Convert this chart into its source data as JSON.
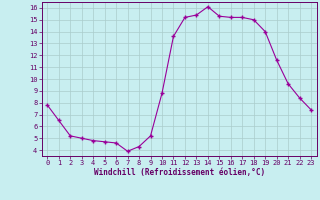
{
  "x": [
    0,
    1,
    2,
    3,
    4,
    5,
    6,
    7,
    8,
    9,
    10,
    11,
    12,
    13,
    14,
    15,
    16,
    17,
    18,
    19,
    20,
    21,
    22,
    23
  ],
  "y": [
    7.8,
    6.5,
    5.2,
    5.0,
    4.8,
    4.7,
    4.6,
    3.9,
    4.3,
    5.2,
    8.8,
    13.6,
    15.2,
    15.4,
    16.1,
    15.3,
    15.2,
    15.2,
    15.0,
    14.0,
    11.6,
    9.6,
    8.4,
    7.4
  ],
  "line_color": "#990099",
  "marker": "+",
  "marker_size": 3.5,
  "bg_color": "#c8eef0",
  "grid_color": "#aacccc",
  "xlabel": "Windchill (Refroidissement éolien,°C)",
  "xlabel_color": "#660066",
  "tick_color": "#660066",
  "ylim": [
    3.5,
    16.5
  ],
  "xlim": [
    -0.5,
    23.5
  ],
  "yticks": [
    4,
    5,
    6,
    7,
    8,
    9,
    10,
    11,
    12,
    13,
    14,
    15,
    16
  ],
  "xticks": [
    0,
    1,
    2,
    3,
    4,
    5,
    6,
    7,
    8,
    9,
    10,
    11,
    12,
    13,
    14,
    15,
    16,
    17,
    18,
    19,
    20,
    21,
    22,
    23
  ]
}
